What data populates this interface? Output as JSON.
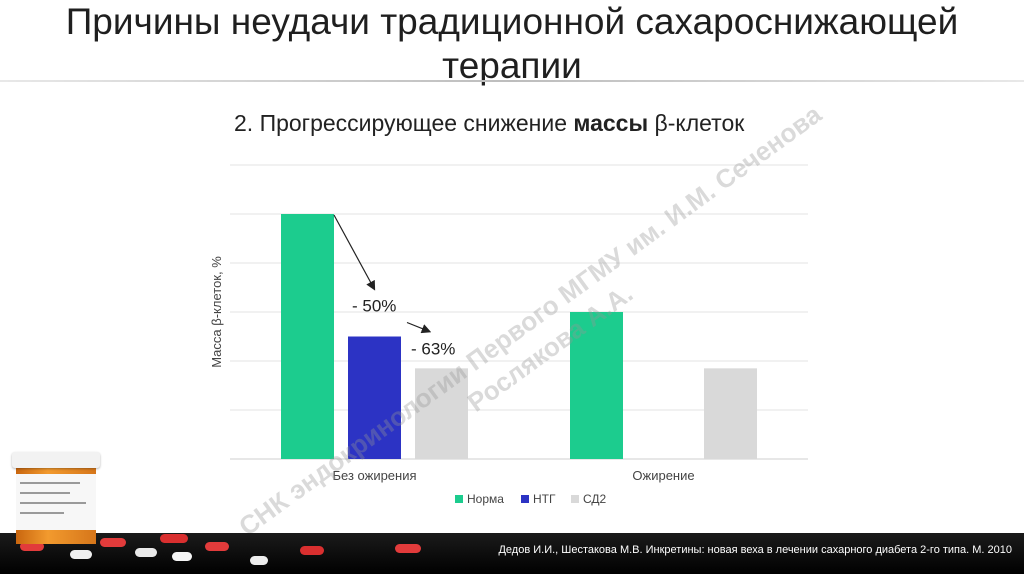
{
  "slide": {
    "title_line1": "Причины неудачи традиционной сахароснижающей",
    "title_line2": "терапии",
    "subtitle_prefix": "2. Прогрессирующее снижение ",
    "subtitle_bold": "массы",
    "subtitle_suffix": " β-клеток",
    "citation": "Дедов И.И., Шестакова М.В. Инкретины: новая веха в лечении сахарного диабета 2-го типа. М. 2010",
    "watermark_line1": "СНК эндокринологии Первого МГМУ им. И.М. Сеченова",
    "watermark_line2": "Рослякова А.А."
  },
  "chart_data": {
    "type": "bar",
    "title": "",
    "ylabel": "Масса β-клеток, %",
    "xlabel": "",
    "categories": [
      "Без ожирения",
      "Ожирение"
    ],
    "series": [
      {
        "name": "Норма",
        "color": "#1ccc8e",
        "values": [
          100,
          60
        ]
      },
      {
        "name": "НТГ",
        "color": "#2c33c4",
        "values": [
          50,
          null
        ]
      },
      {
        "name": "СД2",
        "color": "#d9d9d9",
        "values": [
          37,
          37
        ]
      }
    ],
    "ylim": [
      0,
      120
    ],
    "grid": true,
    "legend": "bottom",
    "annotations": [
      "- 50%",
      "- 63%"
    ]
  }
}
